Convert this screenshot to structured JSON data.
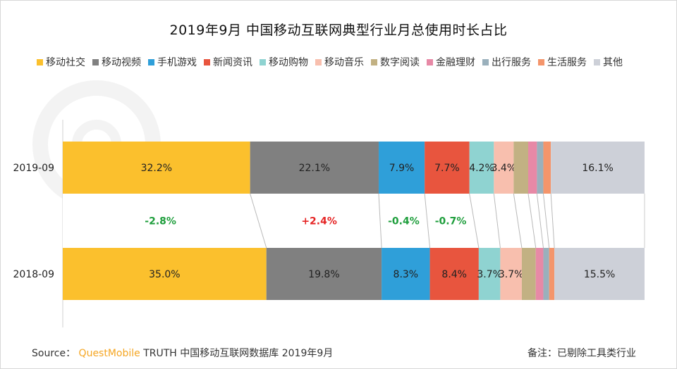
{
  "chart_data": {
    "type": "bar",
    "orientation": "horizontal-stacked-100",
    "title": "2019年9月 中国移动互联网典型行业月总使用时长占比",
    "categories": [
      "2019-09",
      "2018-09"
    ],
    "series": [
      {
        "name": "移动社交",
        "color": "#fbc02d",
        "values": [
          32.2,
          35.0
        ],
        "labels": [
          "32.2%",
          "35.0%"
        ]
      },
      {
        "name": "移动视频",
        "color": "#808080",
        "values": [
          22.1,
          19.8
        ],
        "labels": [
          "22.1%",
          "19.8%"
        ]
      },
      {
        "name": "手机游戏",
        "color": "#2f9fd9",
        "values": [
          7.9,
          8.3
        ],
        "labels": [
          "7.9%",
          "8.3%"
        ]
      },
      {
        "name": "新闻资讯",
        "color": "#e8553e",
        "values": [
          7.7,
          8.4
        ],
        "labels": [
          "7.7%",
          "8.4%"
        ]
      },
      {
        "name": "移动购物",
        "color": "#8fd3d1",
        "values": [
          4.2,
          3.7
        ],
        "labels": [
          "4.2%",
          "3.7%"
        ]
      },
      {
        "name": "移动音乐",
        "color": "#f8bfae",
        "values": [
          3.4,
          3.7
        ],
        "labels": [
          "3.4%",
          "3.7%"
        ]
      },
      {
        "name": "数字阅读",
        "color": "#c2b183",
        "values": [
          2.5,
          2.4
        ],
        "labels": [
          "",
          ""
        ]
      },
      {
        "name": "金融理财",
        "color": "#e789a6",
        "values": [
          1.5,
          1.3
        ],
        "labels": [
          "",
          ""
        ]
      },
      {
        "name": "出行服务",
        "color": "#9ab0bc",
        "values": [
          1.1,
          1.0
        ],
        "labels": [
          "",
          ""
        ]
      },
      {
        "name": "生活服务",
        "color": "#f4956b",
        "values": [
          1.3,
          0.9
        ],
        "labels": [
          "",
          ""
        ]
      },
      {
        "name": "其他",
        "color": "#cdd0d8",
        "values": [
          16.1,
          15.5
        ],
        "labels": [
          "16.1%",
          "15.5%"
        ]
      }
    ],
    "changes": [
      {
        "series": "移动社交",
        "label": "-2.8%",
        "color": "#1e9e3c"
      },
      {
        "series": "移动视频",
        "label": "+2.4%",
        "color": "#e52424"
      },
      {
        "series": "手机游戏",
        "label": "-0.4%",
        "color": "#1e9e3c"
      },
      {
        "series": "新闻资讯",
        "label": "-0.7%",
        "color": "#1e9e3c"
      }
    ],
    "xlim": [
      0,
      100
    ],
    "grid": false,
    "legend": "top"
  },
  "footer": {
    "source_prefix": "Source：",
    "brand": "QuestMobile",
    "source_suffix": "TRUTH 中国移动互联网数据库 2019年9月",
    "note": "备注：已剔除工具类行业"
  }
}
